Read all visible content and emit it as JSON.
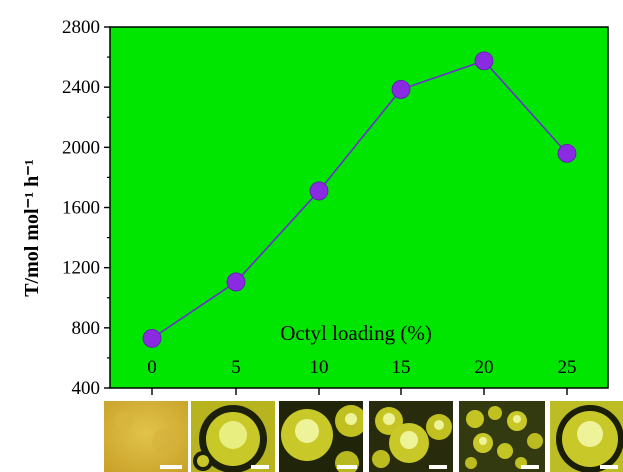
{
  "chart_data": {
    "type": "line",
    "ylabel": "T/mol mol⁻¹ h⁻¹",
    "xlabel": "Octyl loading (%)",
    "x": [
      0,
      5,
      10,
      15,
      20,
      25
    ],
    "series": [
      {
        "values": [
          730,
          1105,
          1710,
          2385,
          2575,
          1960
        ]
      }
    ],
    "y_ticks": [
      400,
      800,
      1200,
      1600,
      2000,
      2400,
      2800
    ],
    "x_ticks": [
      "0",
      "5",
      "10",
      "15",
      "20",
      "25"
    ],
    "ylim": [
      400,
      2800
    ],
    "grid": false,
    "plot_background": "#00e600",
    "line_color": "#6b30d0",
    "marker_color": "#8a2be2"
  },
  "micrographs": [
    {
      "caption_icon": "emulsion-micrograph-0"
    },
    {
      "caption_icon": "emulsion-micrograph-5"
    },
    {
      "caption_icon": "emulsion-micrograph-10"
    },
    {
      "caption_icon": "emulsion-micrograph-15"
    },
    {
      "caption_icon": "emulsion-micrograph-20"
    },
    {
      "caption_icon": "emulsion-micrograph-25"
    }
  ]
}
